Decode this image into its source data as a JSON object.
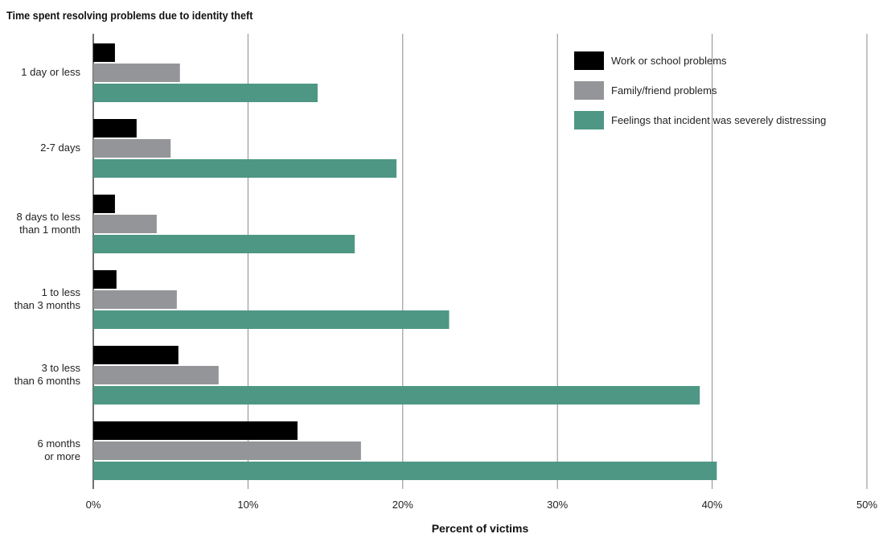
{
  "chart_data": {
    "type": "bar",
    "orientation": "horizontal",
    "title": "Time spent resolving problems due to identity theft",
    "xlabel": "Percent of victims",
    "ylabel": "",
    "categories": [
      [
        "1 day or less"
      ],
      [
        "2-7 days"
      ],
      [
        "8 days to  less",
        "than 1 month"
      ],
      [
        "1 to less",
        "than 3 months"
      ],
      [
        "3 to less",
        "than 6 months"
      ],
      [
        "6 months",
        "or more"
      ]
    ],
    "series": [
      {
        "name": "Work or school problems",
        "color": "#000000",
        "values": [
          1.4,
          2.8,
          1.4,
          1.5,
          5.5,
          13.2
        ]
      },
      {
        "name": "Family/friend problems",
        "color": "#939598",
        "values": [
          5.6,
          5.0,
          4.1,
          5.4,
          8.1,
          17.3
        ]
      },
      {
        "name": "Feelings that incident was severely distressing",
        "color": "#4e9784",
        "values": [
          14.5,
          19.6,
          16.9,
          23.0,
          39.2,
          40.3
        ]
      }
    ],
    "xlim": [
      0,
      50
    ],
    "xticks": [
      0,
      10,
      20,
      30,
      40,
      50
    ],
    "tick_suffix": "%",
    "grid": true,
    "legend_position": "top-right"
  }
}
